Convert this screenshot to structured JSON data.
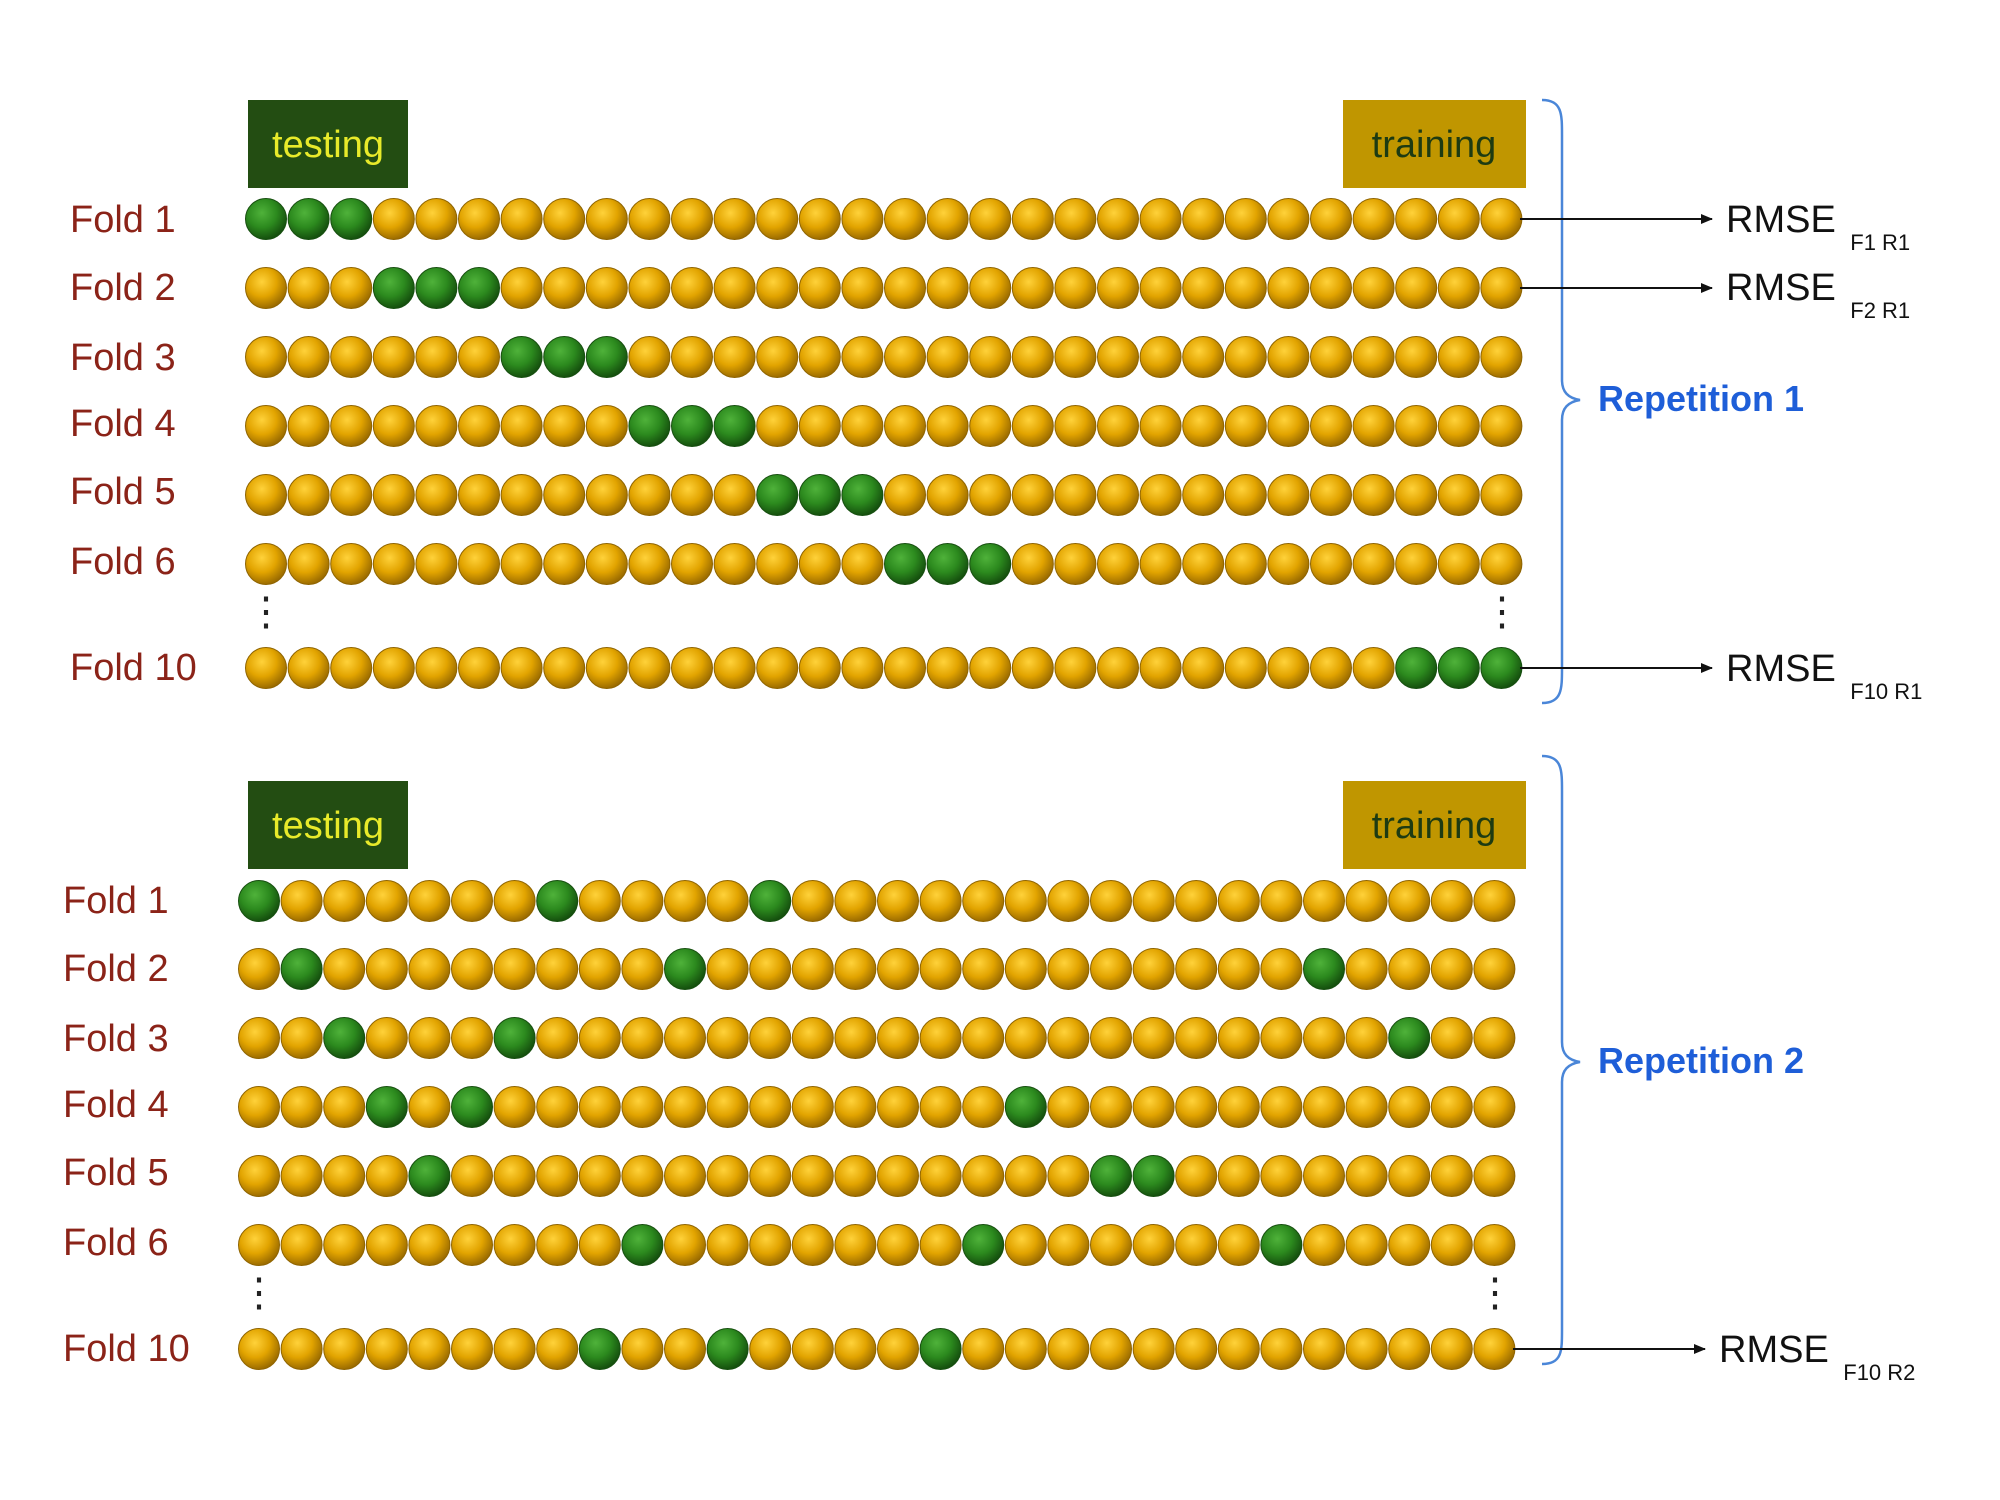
{
  "colors": {
    "train_ball": "#e2a400",
    "test_ball": "#2c8a1e",
    "testing_box": "#234d12",
    "testing_text": "#e8ea2a",
    "training_box": "#c09600",
    "training_text": "#1d3b12",
    "fold_label": "#8b2318",
    "repetition_label": "#1e5ed8",
    "brace": "#4a86d8"
  },
  "legend": {
    "testing": "testing",
    "training": "training"
  },
  "ellipsis": "⋮",
  "n_balls": 30,
  "repetitions": [
    {
      "label": "Repetition 1",
      "folds": [
        {
          "label": "Fold 1",
          "test_indices": [
            0,
            1,
            2
          ],
          "rmse": {
            "main": "RMSE",
            "sub": "F1 R1"
          }
        },
        {
          "label": "Fold 2",
          "test_indices": [
            3,
            4,
            5
          ],
          "rmse": {
            "main": "RMSE",
            "sub": "F2 R1"
          }
        },
        {
          "label": "Fold 3",
          "test_indices": [
            6,
            7,
            8
          ]
        },
        {
          "label": "Fold 4",
          "test_indices": [
            9,
            10,
            11
          ]
        },
        {
          "label": "Fold 5",
          "test_indices": [
            12,
            13,
            14
          ]
        },
        {
          "label": "Fold 6",
          "test_indices": [
            15,
            16,
            17
          ]
        },
        {
          "label": "Fold 10",
          "test_indices": [
            27,
            28,
            29
          ],
          "rmse": {
            "main": "RMSE",
            "sub": "F10 R1"
          }
        }
      ]
    },
    {
      "label": "Repetition 2",
      "folds": [
        {
          "label": "Fold 1",
          "test_indices": [
            0,
            7,
            12
          ]
        },
        {
          "label": "Fold 2",
          "test_indices": [
            1,
            10,
            25
          ]
        },
        {
          "label": "Fold 3",
          "test_indices": [
            2,
            6,
            27
          ]
        },
        {
          "label": "Fold 4",
          "test_indices": [
            3,
            5,
            18
          ]
        },
        {
          "label": "Fold 5",
          "test_indices": [
            4,
            20,
            21
          ]
        },
        {
          "label": "Fold 6",
          "test_indices": [
            9,
            17,
            24
          ]
        },
        {
          "label": "Fold 10",
          "test_indices": [
            8,
            11,
            16
          ],
          "rmse": {
            "main": "RMSE",
            "sub": "F10 R2"
          }
        }
      ]
    }
  ]
}
